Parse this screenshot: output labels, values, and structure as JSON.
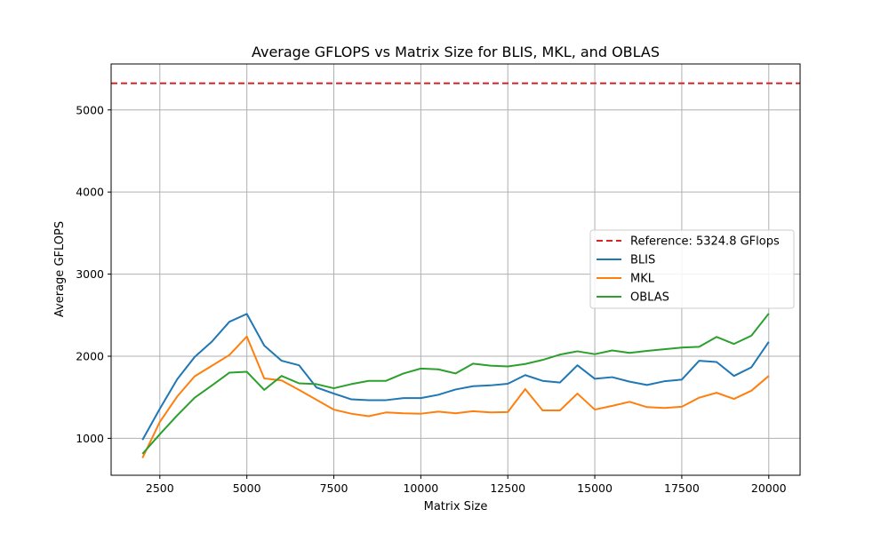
{
  "chart_data": {
    "type": "line",
    "title": "Average GFLOPS vs Matrix Size for BLIS, MKL, and OBLAS",
    "xlabel": "Matrix Size",
    "ylabel": "Average GFLOPS",
    "xlim": [
      1100,
      20900
    ],
    "ylim": [
      550,
      5560
    ],
    "xticks": [
      2500,
      5000,
      7500,
      10000,
      12500,
      15000,
      17500,
      20000
    ],
    "yticks": [
      1000,
      2000,
      3000,
      4000,
      5000
    ],
    "grid": true,
    "legend_position": "center-right",
    "reference": {
      "name": "Reference: 5324.8 GFlops",
      "value": 5324.8,
      "color": "#d62728"
    },
    "x": [
      2000,
      2500,
      3000,
      3500,
      4000,
      4500,
      5000,
      5500,
      6000,
      6500,
      7000,
      7500,
      8000,
      8500,
      9000,
      9500,
      10000,
      10500,
      11000,
      11500,
      12000,
      12500,
      13000,
      13500,
      14000,
      14500,
      15000,
      15500,
      16000,
      16500,
      17000,
      17500,
      18000,
      18500,
      19000,
      19500,
      20000
    ],
    "series": [
      {
        "name": "BLIS",
        "color": "#1f77b4",
        "values": [
          980,
          1360,
          1720,
          1990,
          2180,
          2420,
          2515,
          2130,
          1945,
          1890,
          1620,
          1545,
          1475,
          1465,
          1465,
          1490,
          1490,
          1530,
          1595,
          1635,
          1645,
          1665,
          1770,
          1700,
          1680,
          1890,
          1725,
          1745,
          1690,
          1650,
          1695,
          1715,
          1945,
          1930,
          1760,
          1865,
          2175
        ]
      },
      {
        "name": "MKL",
        "color": "#ff7f0e",
        "values": [
          760,
          1200,
          1510,
          1755,
          1885,
          2015,
          2240,
          1730,
          1705,
          1590,
          1470,
          1350,
          1300,
          1270,
          1315,
          1305,
          1300,
          1325,
          1305,
          1330,
          1315,
          1320,
          1600,
          1340,
          1340,
          1545,
          1350,
          1395,
          1445,
          1380,
          1370,
          1385,
          1495,
          1555,
          1480,
          1580,
          1760
        ]
      },
      {
        "name": "OBLAS",
        "color": "#2ca02c",
        "values": [
          810,
          1050,
          1280,
          1495,
          1645,
          1800,
          1810,
          1590,
          1760,
          1670,
          1660,
          1610,
          1660,
          1700,
          1700,
          1790,
          1850,
          1840,
          1790,
          1910,
          1885,
          1875,
          1905,
          1955,
          2020,
          2060,
          2025,
          2070,
          2040,
          2065,
          2085,
          2105,
          2115,
          2235,
          2150,
          2250,
          2520
        ]
      }
    ]
  }
}
